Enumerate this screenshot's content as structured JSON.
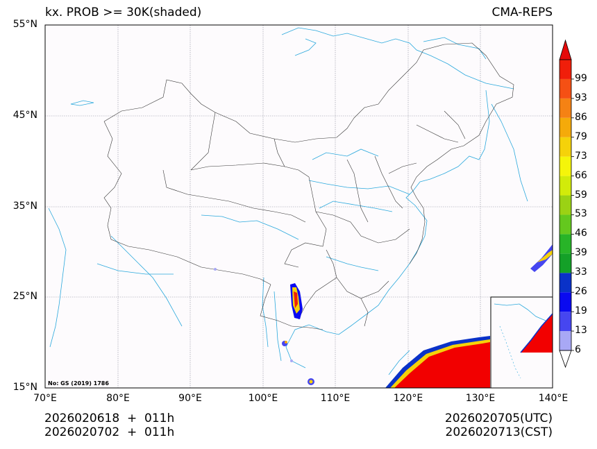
{
  "header": {
    "title_left": "kx. PROB >= 30K(shaded)",
    "title_right": "CMA-REPS"
  },
  "axes": {
    "lat_labels": [
      "55°N",
      "45°N",
      "35°N",
      "25°N",
      "15°N"
    ],
    "lon_labels": [
      "70°E",
      "80°E",
      "90°E",
      "100°E",
      "110°E",
      "120°E",
      "130°E",
      "140°E"
    ]
  },
  "colorbar": {
    "levels": [
      "6",
      "13",
      "19",
      "26",
      "33",
      "39",
      "46",
      "53",
      "59",
      "66",
      "73",
      "79",
      "86",
      "93",
      "99"
    ],
    "colors": [
      "#a8a8f5",
      "#4646f0",
      "#0a0af0",
      "#0a32c8",
      "#14a028",
      "#28b428",
      "#64c81e",
      "#9bd214",
      "#d2eb0a",
      "#f5f50a",
      "#f5d20a",
      "#f5aa0a",
      "#f58214",
      "#f55014",
      "#f01e0a",
      "#e60a0a"
    ]
  },
  "credit": "No: GS (2019) 1786",
  "footer": {
    "init_utc": "2026020618  +  011h",
    "init_cst": "2026020702  +  011h",
    "valid_utc": "2026020705(UTC)",
    "valid_cst": "2026020713(CST)"
  },
  "style": {
    "river_color": "#29a8dc",
    "border_color": "#333333",
    "grid_color": "#8c8c9c",
    "prob_high_color": "#f20000"
  }
}
